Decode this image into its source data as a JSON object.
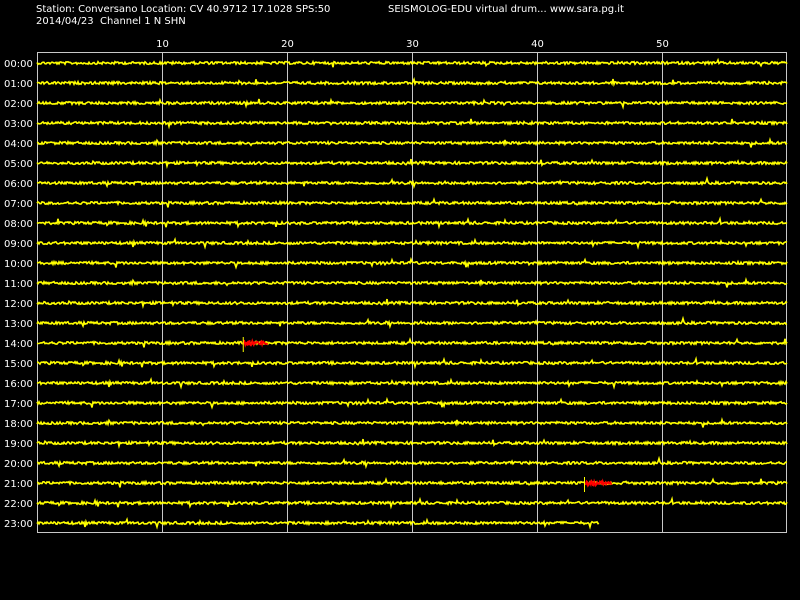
{
  "header": {
    "title": "Station: Conversano Location: CV 40.9712 17.1028 SPS:50",
    "subtitle": "2014/04/23  Channel 1 N SHN",
    "right_title": "SEISMOLOG-EDU virtual drum... www.sara.pg.it"
  },
  "colors": {
    "background": "#000000",
    "trace": "#ffff00",
    "event": "#ff0000",
    "grid": "#c8c8c8",
    "text": "#ffffff"
  },
  "chart_data": {
    "type": "line",
    "x_ticks": [
      10,
      20,
      30,
      40,
      50
    ],
    "xlim": [
      0,
      60
    ],
    "rows": [
      "00:00",
      "01:00",
      "02:00",
      "03:00",
      "04:00",
      "05:00",
      "06:00",
      "07:00",
      "08:00",
      "09:00",
      "10:00",
      "11:00",
      "12:00",
      "13:00",
      "14:00",
      "15:00",
      "16:00",
      "17:00",
      "18:00",
      "19:00",
      "20:00",
      "21:00",
      "22:00",
      "23:00"
    ],
    "last_row_end_minute": 45,
    "events": [
      {
        "row": "14:00",
        "start_minute": 16.5,
        "end_minute": 18.5
      },
      {
        "row": "21:00",
        "start_minute": 43.8,
        "end_minute": 46
      }
    ]
  }
}
